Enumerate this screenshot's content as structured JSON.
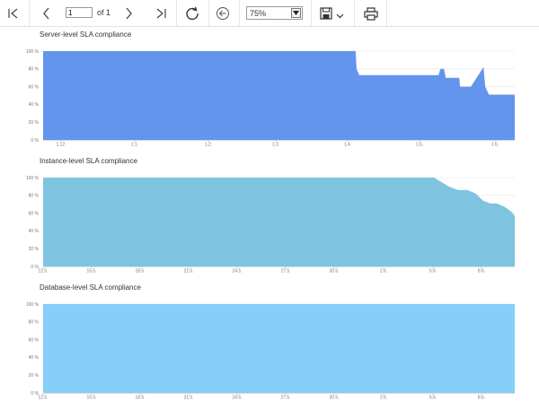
{
  "toolbar": {
    "page_value": "1",
    "of_label": "of 1",
    "zoom_value": "75%"
  },
  "chart_data": [
    {
      "type": "area",
      "title": "Server-level SLA compliance",
      "ylim": [
        0,
        100
      ],
      "y_ticks": [
        "0 %",
        "20 %",
        "40 %",
        "60 %",
        "80 %",
        "100 %"
      ],
      "x_ticks": [
        "1.12.",
        "1.1.",
        "1.2.",
        "1.3.",
        "1.4.",
        "1.5.",
        "1.6."
      ],
      "color": "#6495ED",
      "x": [
        0,
        0.6626,
        0.6645,
        0.6702,
        0.8384,
        0.8422,
        0.8499,
        0.8537,
        0.8613,
        0.8632,
        0.8823,
        0.8842,
        0.9033,
        0.9071,
        0.9338,
        0.9376,
        0.9452,
        0.9472,
        1.0
      ],
      "values": [
        100,
        100,
        80,
        73,
        73,
        80,
        80,
        70,
        70,
        70,
        70,
        60,
        60,
        60,
        82,
        60,
        51,
        51,
        51
      ]
    },
    {
      "type": "area",
      "title": "Instance-level SLA compliance",
      "ylim": [
        0,
        100
      ],
      "y_ticks": [
        "0 %",
        "20 %",
        "40 %",
        "60 %",
        "80 %",
        "100 %"
      ],
      "x_ticks": [
        "12.5.",
        "15.5.",
        "18.5.",
        "21.5.",
        "24.5.",
        "27.5.",
        "30.5.",
        "2.6.",
        "5.6.",
        "8.6."
      ],
      "color": "#7EC4E0",
      "x": [
        0,
        0.829,
        0.86,
        0.88,
        0.9,
        0.917,
        0.933,
        0.948,
        0.962,
        0.979,
        0.992,
        1.0
      ],
      "values": [
        100,
        100,
        90,
        86,
        86,
        82,
        74,
        71,
        71,
        67,
        62,
        57
      ]
    },
    {
      "type": "area",
      "title": "Database-level SLA compliance",
      "ylim": [
        0,
        100
      ],
      "y_ticks": [
        "0 %",
        "20 %",
        "40 %",
        "60 %",
        "80 %",
        "100 %"
      ],
      "x_ticks": [
        "12.5.",
        "15.5.",
        "18.5.",
        "21.5.",
        "24.5.",
        "27.5.",
        "30.5.",
        "2.6.",
        "5.6.",
        "8.6."
      ],
      "color": "#87CEFA",
      "x": [
        0,
        1.0
      ],
      "values": [
        100,
        100
      ]
    }
  ]
}
